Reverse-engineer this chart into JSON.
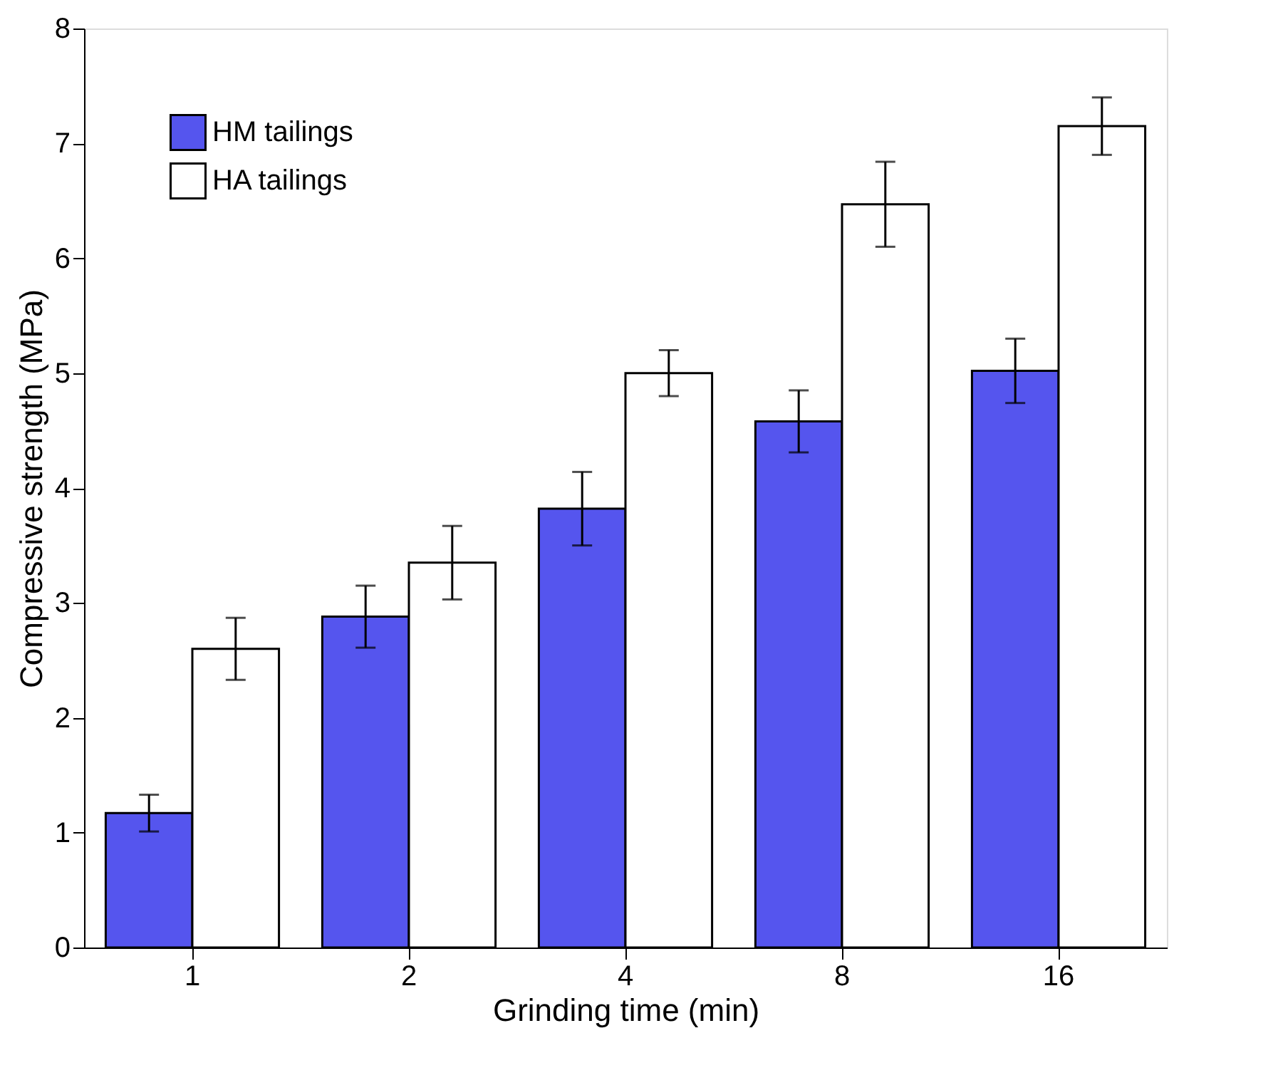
{
  "chart_data": {
    "type": "bar",
    "xlabel": "Grinding time (min)",
    "ylabel": "Compressive strength (MPa)",
    "categories": [
      "1",
      "2",
      "4",
      "8",
      "16"
    ],
    "series": [
      {
        "name": "HM tailings",
        "color": "#5555ee",
        "values": [
          1.17,
          2.88,
          3.82,
          4.58,
          5.02
        ],
        "errors": [
          0.16,
          0.27,
          0.32,
          0.27,
          0.28
        ]
      },
      {
        "name": "HA tailings",
        "color": "#ffffff",
        "values": [
          2.6,
          3.35,
          5.0,
          6.47,
          7.15
        ],
        "errors": [
          0.27,
          0.32,
          0.2,
          0.37,
          0.25
        ]
      }
    ],
    "ylim": [
      0,
      8
    ],
    "yticks": [
      0,
      1,
      2,
      3,
      4,
      5,
      6,
      7,
      8
    ],
    "grid": false,
    "legend": "top left"
  }
}
